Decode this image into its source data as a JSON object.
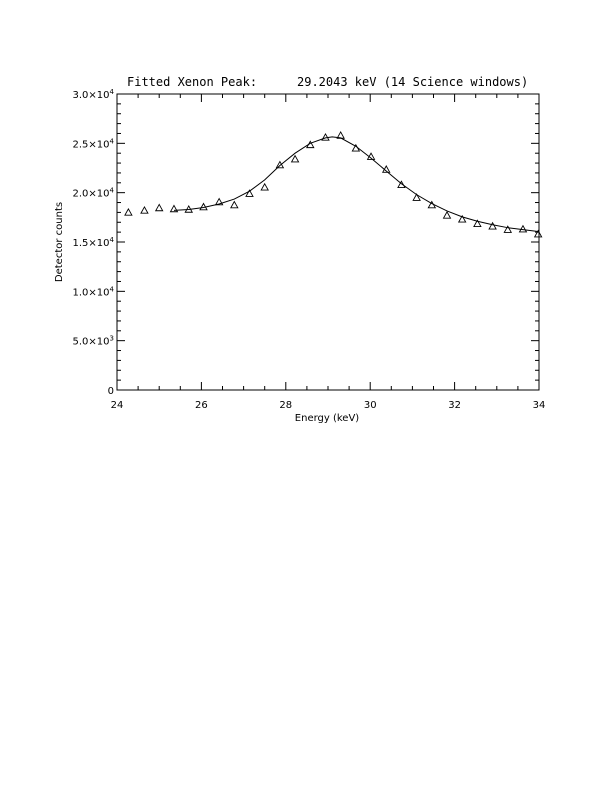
{
  "chart_data": {
    "type": "scatter",
    "title": "Fitted Xenon Peak:",
    "subtitle": "29.2043 keV (14 Science windows)",
    "xlabel": "Energy (keV)",
    "ylabel": "Detector counts",
    "xlim": [
      24,
      34
    ],
    "ylim": [
      0,
      30000
    ],
    "x_ticks": [
      24,
      26,
      28,
      30,
      32,
      34
    ],
    "x_tick_labels": [
      "24",
      "26",
      "28",
      "30",
      "32",
      "34"
    ],
    "y_ticks": [
      0,
      5000,
      10000,
      15000,
      20000,
      25000,
      30000
    ],
    "y_tick_labels": [
      {
        "mant": "0",
        "exp": ""
      },
      {
        "mant": "5.0×10",
        "exp": "3"
      },
      {
        "mant": "1.0×10",
        "exp": "4"
      },
      {
        "mant": "1.5×10",
        "exp": "4"
      },
      {
        "mant": "2.0×10",
        "exp": "4"
      },
      {
        "mant": "2.5×10",
        "exp": "4"
      },
      {
        "mant": "3.0×10",
        "exp": "4"
      }
    ],
    "grid": false,
    "series": [
      {
        "marker": "triangle",
        "x": [
          24.27,
          24.65,
          25.0,
          25.35,
          25.7,
          26.05,
          26.42,
          26.78,
          27.14,
          27.5,
          27.86,
          28.22,
          28.58,
          28.94,
          29.3,
          29.66,
          30.02,
          30.38,
          30.74,
          31.1,
          31.46,
          31.82,
          32.18,
          32.54,
          32.9,
          33.26,
          33.62,
          33.98
        ],
        "y": [
          18000,
          18200,
          18450,
          18350,
          18300,
          18550,
          19050,
          18750,
          19900,
          20550,
          22800,
          23400,
          24850,
          25600,
          25800,
          24500,
          23650,
          22350,
          20800,
          19500,
          18750,
          17700,
          17300,
          16850,
          16600,
          16250,
          16300,
          15800
        ]
      },
      {
        "style": "line",
        "x": [
          25.35,
          25.7,
          26.05,
          26.42,
          26.78,
          27.14,
          27.5,
          27.86,
          28.22,
          28.58,
          28.94,
          29.1,
          29.3,
          29.66,
          30.02,
          30.38,
          30.74,
          31.1,
          31.46,
          31.82,
          32.18,
          32.54,
          32.9,
          33.26,
          33.62,
          34.0
        ],
        "y": [
          18200,
          18300,
          18500,
          18850,
          19350,
          20150,
          21300,
          22750,
          24000,
          25000,
          25550,
          25650,
          25550,
          24700,
          23500,
          22200,
          20900,
          19800,
          18900,
          18150,
          17550,
          17100,
          16750,
          16450,
          16250,
          16050
        ]
      }
    ]
  }
}
